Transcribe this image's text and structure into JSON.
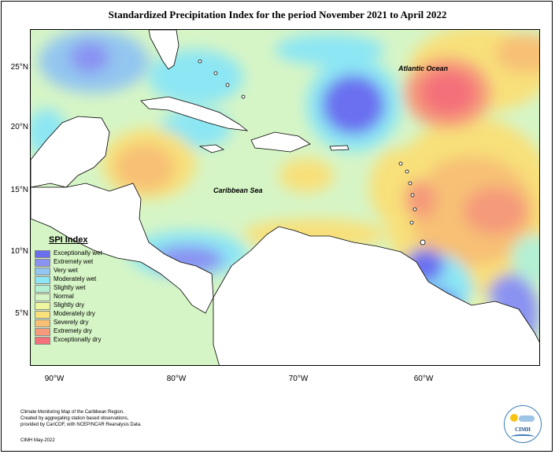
{
  "title": "Standardized Precipitation Index for the period November 2021 to April 2022",
  "latitude_labels": [
    "25°N",
    "20°N",
    "15°N",
    "10°N",
    "5°N"
  ],
  "longitude_labels": [
    "90°W",
    "80°W",
    "70°W",
    "60°W"
  ],
  "sea_labels": {
    "atlantic": "Atlantic Ocean",
    "caribbean": "Caribbean Sea"
  },
  "legend": {
    "title": "SPI Index",
    "items": [
      {
        "label": "Exceptionally wet",
        "color": "#6a6ff0"
      },
      {
        "label": "Extremely wet",
        "color": "#8a92f2"
      },
      {
        "label": "Very wet",
        "color": "#93c6f0"
      },
      {
        "label": "Moderately wet",
        "color": "#8ce6f4"
      },
      {
        "label": "Slightly wet",
        "color": "#b3f0d4"
      },
      {
        "label": "Normal",
        "color": "#d6f5c6"
      },
      {
        "label": "Slightly dry",
        "color": "#eef6a0"
      },
      {
        "label": "Moderately dry",
        "color": "#f8e07a"
      },
      {
        "label": "Severely dry",
        "color": "#f7c074"
      },
      {
        "label": "Extremely dry",
        "color": "#f59a7a"
      },
      {
        "label": "Exceptionally dry",
        "color": "#f4707a"
      }
    ]
  },
  "note": {
    "line1": "Climate Monitoring Map of the Caribbean Region.",
    "line2": "Created by aggregating station based observations,",
    "line3": "provided by CariCOF, with NCEP/NCAR Reanalysis Data."
  },
  "credit": "CIMH May-2022",
  "logo": {
    "text": "CIMH"
  }
}
